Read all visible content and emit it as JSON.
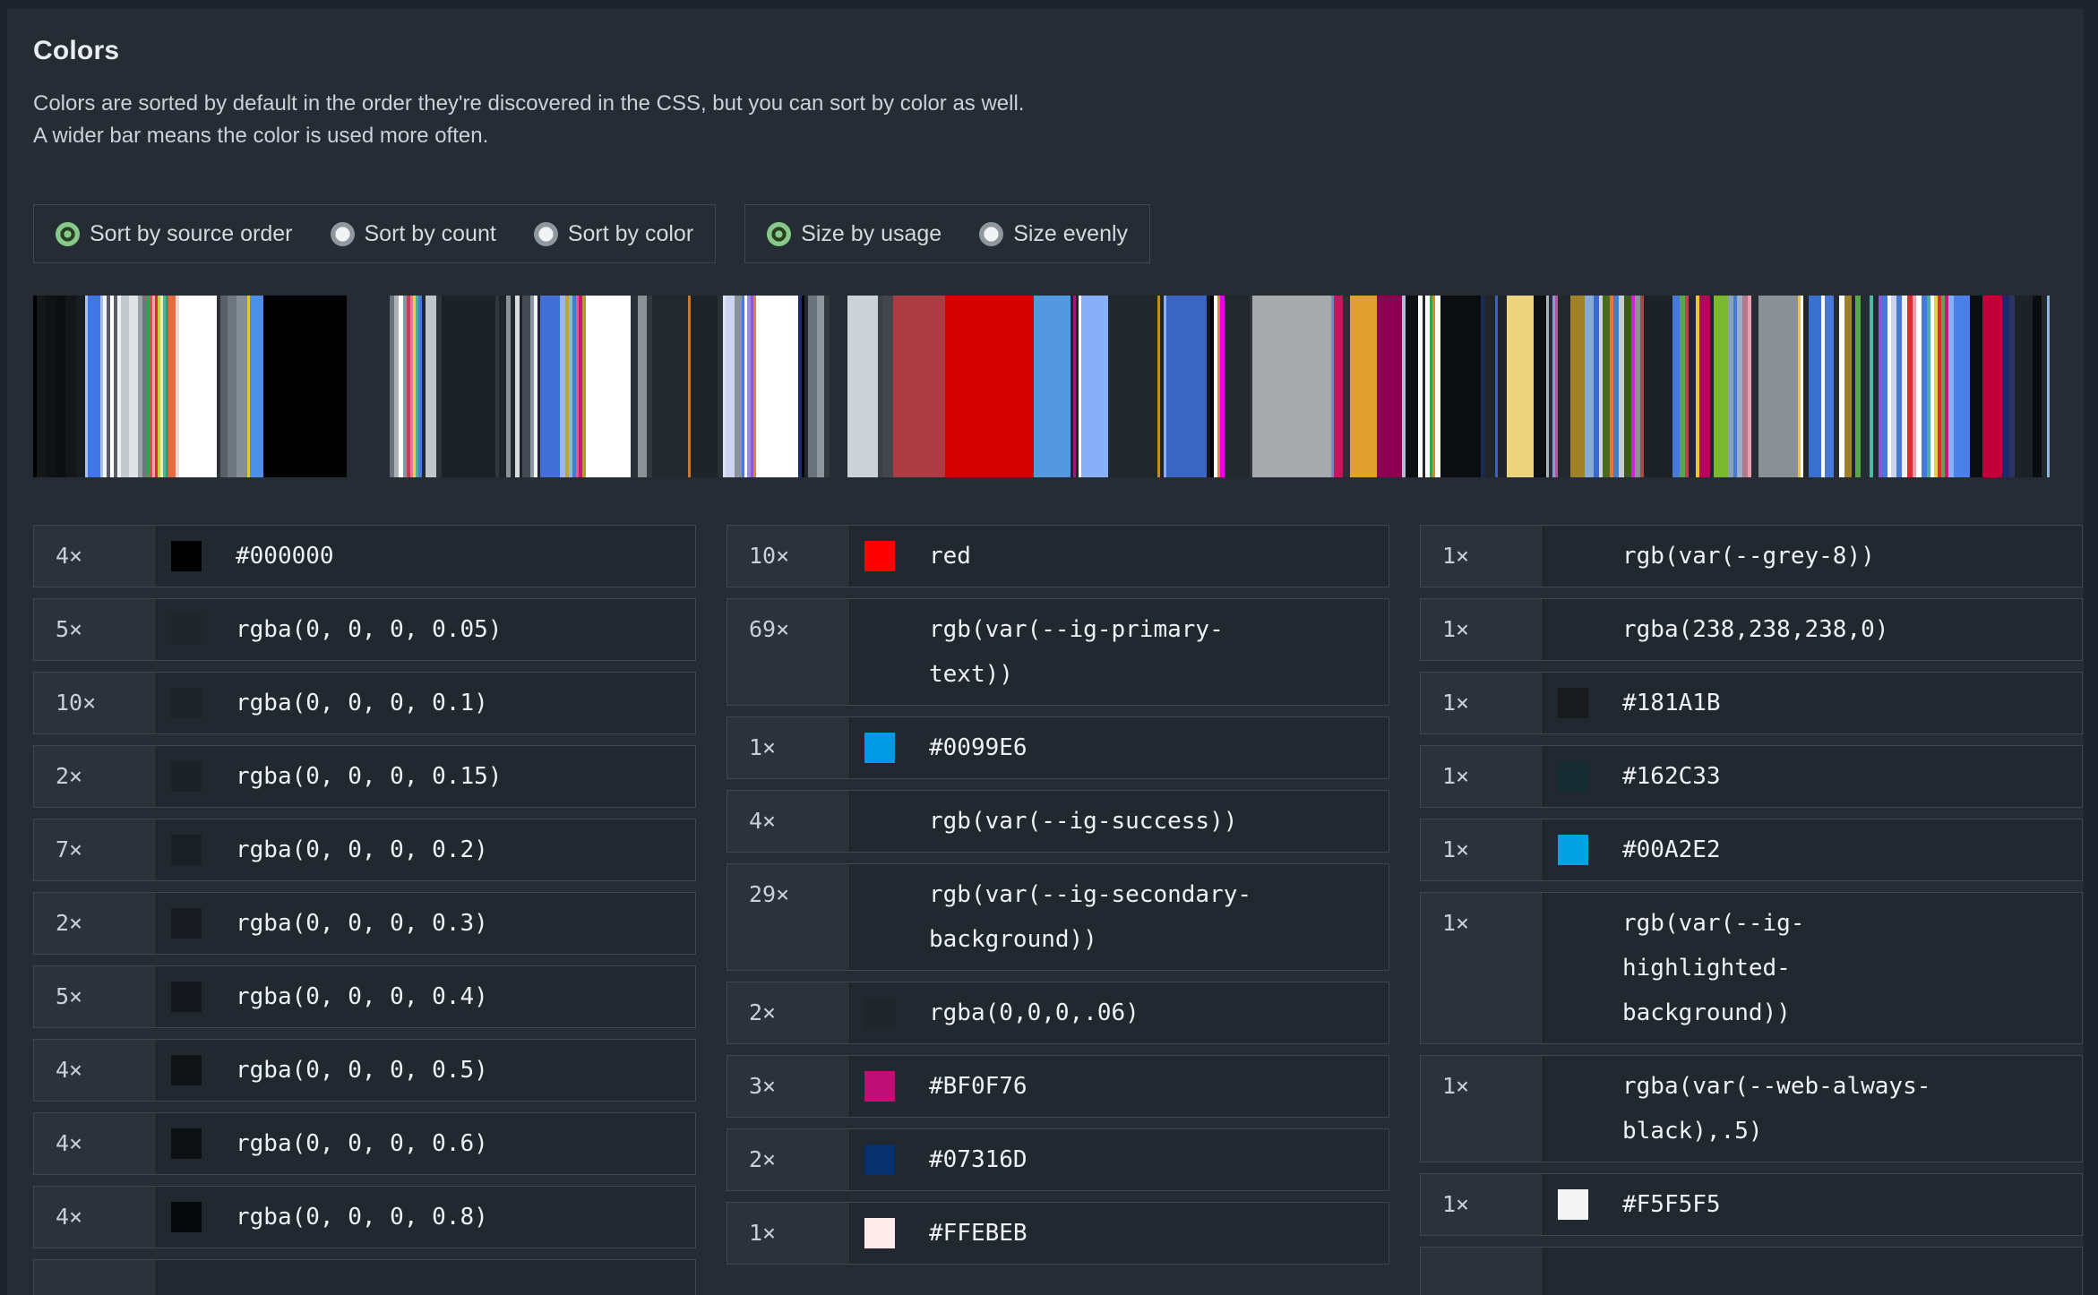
{
  "header": {
    "title": "Colors",
    "description_line1": "Colors are sorted by default in the order they're discovered in the CSS, but you can sort by color as well.",
    "description_line2": "A wider bar means the color is used more often."
  },
  "controls": {
    "sort_group": [
      {
        "label": "Sort by source order",
        "selected": true
      },
      {
        "label": "Sort by count",
        "selected": false
      },
      {
        "label": "Sort by color",
        "selected": false
      }
    ],
    "size_group": [
      {
        "label": "Size by usage",
        "selected": true
      },
      {
        "label": "Size evenly",
        "selected": false
      }
    ]
  },
  "strip": {
    "bars": [
      [
        4,
        "#000000"
      ],
      [
        10,
        "#15181b"
      ],
      [
        12,
        "#101316"
      ],
      [
        10,
        "#0c0e11"
      ],
      [
        12,
        "#14171a"
      ],
      [
        10,
        "#191c20"
      ],
      [
        3,
        "#a9c1ee"
      ],
      [
        14,
        "#4176e8"
      ],
      [
        3,
        "#a9c1ee"
      ],
      [
        4,
        "#f2f4f6"
      ],
      [
        4,
        "#565c63"
      ],
      [
        4,
        "#ffffff"
      ],
      [
        4,
        "#5a6168"
      ],
      [
        4,
        "#eef0f2"
      ],
      [
        9,
        "#c3c9cf"
      ],
      [
        10,
        "#dfe3e6"
      ],
      [
        5,
        "#9aa3ab"
      ],
      [
        5,
        "#70787f"
      ],
      [
        3,
        "#3da14c"
      ],
      [
        3,
        "#e04858"
      ],
      [
        3,
        "#f0a0b0"
      ],
      [
        3,
        "#d03030"
      ],
      [
        3,
        "#bcd34e"
      ],
      [
        3,
        "#f0eba8"
      ],
      [
        3,
        "#46b4a4"
      ],
      [
        3,
        "#3a9a5a"
      ],
      [
        8,
        "#e66a3c"
      ],
      [
        4,
        "#f0d8d0"
      ],
      [
        42,
        "#ffffff"
      ],
      [
        4,
        "#2c3238"
      ],
      [
        8,
        "#596067"
      ],
      [
        10,
        "#6e777e"
      ],
      [
        12,
        "#858e95"
      ],
      [
        3,
        "#e8c33c"
      ],
      [
        15,
        "#4b8fe8"
      ],
      [
        93,
        "#000000"
      ],
      [
        48,
        "transparent"
      ],
      [
        5,
        "#6a737a"
      ],
      [
        5,
        "#aab2b8"
      ],
      [
        5,
        "#ffffff"
      ],
      [
        4,
        "#8a949c"
      ],
      [
        4,
        "#c83c50"
      ],
      [
        3,
        "#e87890"
      ],
      [
        3,
        "#e8d048"
      ],
      [
        3,
        "#48b0a0"
      ],
      [
        4,
        "#4878d8"
      ],
      [
        4,
        "#23292f"
      ],
      [
        12,
        "#c0c6cc"
      ],
      [
        6,
        "#2e343b"
      ],
      [
        60,
        "#1d2228"
      ],
      [
        4,
        "#31373d"
      ],
      [
        8,
        "#20252b"
      ],
      [
        5,
        "#8a9299"
      ],
      [
        5,
        "#24292f"
      ],
      [
        5,
        "#d8dcdf"
      ],
      [
        3,
        "#1f252b"
      ],
      [
        9,
        "#454b52"
      ],
      [
        4,
        "#8f979e"
      ],
      [
        4,
        "#f0f2f4"
      ],
      [
        3,
        "#22282e"
      ],
      [
        22,
        "#4270d8"
      ],
      [
        6,
        "#9ab8f0"
      ],
      [
        4,
        "#c8a030"
      ],
      [
        4,
        "#88b8e8"
      ],
      [
        4,
        "#4878d8"
      ],
      [
        3,
        "#e85890"
      ],
      [
        4,
        "#c81878"
      ],
      [
        4,
        "#a8a030"
      ],
      [
        50,
        "#ffffff"
      ],
      [
        8,
        "#2b3138"
      ],
      [
        10,
        "#8a9298"
      ],
      [
        6,
        "#34393f"
      ],
      [
        40,
        "#23282e"
      ],
      [
        3,
        "#c87828"
      ],
      [
        30,
        "#1f242a"
      ],
      [
        6,
        "#2a3036"
      ],
      [
        3,
        "#dce2f2"
      ],
      [
        10,
        "#ccd4f0"
      ],
      [
        8,
        "#8a929a"
      ],
      [
        3,
        "#4878d8"
      ],
      [
        3,
        "#ffffff"
      ],
      [
        4,
        "#9a88e0"
      ],
      [
        3,
        "#8858d8"
      ],
      [
        3,
        "#d88828"
      ],
      [
        3,
        "#ffffff"
      ],
      [
        44,
        "#ffffff"
      ],
      [
        4,
        "#1a2a6a"
      ],
      [
        3,
        "#000000"
      ],
      [
        4,
        "#23282e"
      ],
      [
        10,
        "#6a737c"
      ],
      [
        8,
        "#8e979e"
      ],
      [
        6,
        "#34393f"
      ],
      [
        20,
        "#2229 30"
      ],
      [
        34,
        "#ccd2d6"
      ],
      [
        5,
        "#3a4046"
      ],
      [
        12,
        "#43474d"
      ],
      [
        58,
        "#ac3c44"
      ],
      [
        99,
        "#d50000"
      ],
      [
        41,
        "#5598e2"
      ],
      [
        3,
        "#1a2040"
      ],
      [
        3,
        "#a01878"
      ],
      [
        3,
        "#22272e"
      ],
      [
        3,
        "#ffffff"
      ],
      [
        30,
        "#88b0f8"
      ],
      [
        55,
        "#22272e"
      ],
      [
        3,
        "#c88828"
      ],
      [
        4,
        "#1f242a"
      ],
      [
        3,
        "#88b0f8"
      ],
      [
        45,
        "#3a65c0"
      ],
      [
        4,
        "#15181c"
      ],
      [
        4,
        "#000000"
      ],
      [
        4,
        "#ffffff"
      ],
      [
        3,
        "#d88828"
      ],
      [
        5,
        "#e800e8"
      ],
      [
        28,
        "#22282e"
      ],
      [
        3,
        "#31373d"
      ],
      [
        88,
        "#a7abae"
      ],
      [
        3,
        "#7888c8"
      ],
      [
        10,
        "#c2185b"
      ],
      [
        8,
        "#2a3036"
      ],
      [
        30,
        "#e0a030"
      ],
      [
        28,
        "#8b0050"
      ],
      [
        4,
        "#b8b8d8"
      ],
      [
        14,
        "#0e1114"
      ],
      [
        5,
        "#ffffff"
      ],
      [
        3,
        "#23282e"
      ],
      [
        5,
        "#ffffff"
      ],
      [
        3,
        "#3da14c"
      ],
      [
        3,
        "#d88828"
      ],
      [
        6,
        "#ffffff"
      ],
      [
        45,
        "#0b0e11"
      ],
      [
        4,
        "#1a2a5a"
      ],
      [
        12,
        "#20262c"
      ],
      [
        3,
        "#3a60c0"
      ],
      [
        10,
        "#1d2329"
      ],
      [
        30,
        "#ecd47e"
      ],
      [
        14,
        "#0e1114"
      ],
      [
        3,
        "#aab2b8"
      ],
      [
        4,
        "#262c33"
      ],
      [
        3,
        "#8898d8"
      ],
      [
        3,
        "#b05898"
      ],
      [
        14,
        "#22282e"
      ],
      [
        16,
        "#a08028"
      ],
      [
        10,
        "#88aad8"
      ],
      [
        6,
        "#3a6ad0"
      ],
      [
        4,
        "#cdd4da"
      ],
      [
        8,
        "#4a6a20"
      ],
      [
        4,
        "#e07838"
      ],
      [
        6,
        "#4a7ac4"
      ],
      [
        6,
        "#c8ccd0"
      ],
      [
        8,
        "#3a5a20"
      ],
      [
        4,
        "#d820d8"
      ],
      [
        6,
        "#8a9298"
      ],
      [
        4,
        "#a84848"
      ],
      [
        32,
        "#1d2228"
      ],
      [
        8,
        "#4878d8"
      ],
      [
        6,
        "#58a848"
      ],
      [
        4,
        "#c83c50"
      ],
      [
        8,
        "#23282e"
      ],
      [
        4,
        "#e8c838"
      ],
      [
        12,
        "#b00858"
      ],
      [
        4,
        "#1f252b"
      ],
      [
        16,
        "#7ab82e"
      ],
      [
        6,
        "#8aa0b8"
      ],
      [
        4,
        "#4878d8"
      ],
      [
        6,
        "#9ab0c8"
      ],
      [
        6,
        "#b07888"
      ],
      [
        4,
        "#e8a0b0"
      ],
      [
        8,
        "#262c32"
      ],
      [
        44,
        "#8a9096"
      ],
      [
        3,
        "#e8c838"
      ],
      [
        3,
        "#ffffff"
      ],
      [
        6,
        "#23282e"
      ],
      [
        14,
        "#3a70d0"
      ],
      [
        4,
        "#ffffff"
      ],
      [
        10,
        "#4878d8"
      ],
      [
        6,
        "#262c32"
      ],
      [
        6,
        "#ffffff"
      ],
      [
        8,
        "#a08028"
      ],
      [
        4,
        "#1f252b"
      ],
      [
        6,
        "#58a848"
      ],
      [
        10,
        "transparent"
      ],
      [
        4,
        "#48b8a8"
      ],
      [
        6,
        "#23282e"
      ],
      [
        4,
        "#8858d8"
      ],
      [
        6,
        "#4878d8"
      ],
      [
        4,
        "#ffffff"
      ],
      [
        6,
        "#ccd4f0"
      ],
      [
        6,
        "#4878d8"
      ],
      [
        6,
        "#eef0f4"
      ],
      [
        6,
        "#d83030"
      ],
      [
        4,
        "#e8a0b0"
      ],
      [
        6,
        "#ffffff"
      ],
      [
        6,
        "#4878d8"
      ],
      [
        4,
        "#48b0a0"
      ],
      [
        4,
        "#ffffff"
      ],
      [
        4,
        "#e8d048"
      ],
      [
        4,
        "#d83030"
      ],
      [
        4,
        "#58a848"
      ],
      [
        4,
        "#c81878"
      ],
      [
        6,
        "#88b0f8"
      ],
      [
        18,
        "#4a80e8"
      ],
      [
        14,
        "#0b0e11"
      ],
      [
        22,
        "#c2003c"
      ],
      [
        8,
        "#1a2a6a"
      ],
      [
        6,
        "#2a3560"
      ],
      [
        20,
        "#1d2228"
      ],
      [
        10,
        "#0b0e11"
      ],
      [
        6,
        "#23282e"
      ],
      [
        3,
        "#88b8e8"
      ]
    ]
  },
  "columns": [
    {
      "rows": [
        {
          "count": "4×",
          "value": "#000000",
          "swatch": "#000000"
        },
        {
          "count": "5×",
          "value": "rgba(0, 0, 0, 0.05)",
          "swatch": "rgba(0, 0, 0, 0.05)"
        },
        {
          "count": "10×",
          "value": "rgba(0, 0, 0, 0.1)",
          "swatch": "rgba(0, 0, 0, 0.1)"
        },
        {
          "count": "2×",
          "value": "rgba(0, 0, 0, 0.15)",
          "swatch": "rgba(0, 0, 0, 0.15)"
        },
        {
          "count": "7×",
          "value": "rgba(0, 0, 0, 0.2)",
          "swatch": "rgba(0, 0, 0, 0.2)"
        },
        {
          "count": "2×",
          "value": "rgba(0, 0, 0, 0.3)",
          "swatch": "rgba(0, 0, 0, 0.3)"
        },
        {
          "count": "5×",
          "value": "rgba(0, 0, 0, 0.4)",
          "swatch": "rgba(0, 0, 0, 0.4)"
        },
        {
          "count": "4×",
          "value": "rgba(0, 0, 0, 0.5)",
          "swatch": "rgba(0, 0, 0, 0.5)"
        },
        {
          "count": "4×",
          "value": "rgba(0, 0, 0, 0.6)",
          "swatch": "rgba(0, 0, 0, 0.6)"
        },
        {
          "count": "4×",
          "value": "rgba(0, 0, 0, 0.8)",
          "swatch": "rgba(0, 0, 0, 0.8)"
        },
        {
          "shell": true
        }
      ]
    },
    {
      "rows": [
        {
          "count": "10×",
          "value": "red",
          "swatch": "red"
        },
        {
          "count": "69×",
          "value": "rgb(var(--ig-primary-text))",
          "swatch": null
        },
        {
          "count": "1×",
          "value": "#0099E6",
          "swatch": "#0099E6"
        },
        {
          "count": "4×",
          "value": "rgb(var(--ig-success))",
          "swatch": null
        },
        {
          "count": "29×",
          "value": "rgb(var(--ig-secondary-background))",
          "swatch": null
        },
        {
          "count": "2×",
          "value": "rgba(0,0,0,.06)",
          "swatch": "rgba(0,0,0,.06)"
        },
        {
          "count": "3×",
          "value": "#BF0F76",
          "swatch": "#BF0F76"
        },
        {
          "count": "2×",
          "value": "#07316D",
          "swatch": "#07316D"
        },
        {
          "count": "1×",
          "value": "#FFEBEB",
          "swatch": "#FFEBEB"
        }
      ]
    },
    {
      "rows": [
        {
          "count": "1×",
          "value": "rgb(var(--grey-8))",
          "swatch": null
        },
        {
          "count": "1×",
          "value": "rgba(238,238,238,0)",
          "swatch": null
        },
        {
          "count": "1×",
          "value": "#181A1B",
          "swatch": "#181A1B"
        },
        {
          "count": "1×",
          "value": "#162C33",
          "swatch": "#162C33"
        },
        {
          "count": "1×",
          "value": "#00A2E2",
          "swatch": "#00A2E2"
        },
        {
          "count": "1×",
          "value": "rgb(var(--ig-highlighted-background))",
          "swatch": null
        },
        {
          "count": "1×",
          "value": "rgba(var(--web-always-black),.5)",
          "swatch": null
        },
        {
          "count": "1×",
          "value": "#F5F5F5",
          "swatch": "#F5F5F5"
        },
        {
          "shell": true
        }
      ]
    }
  ]
}
